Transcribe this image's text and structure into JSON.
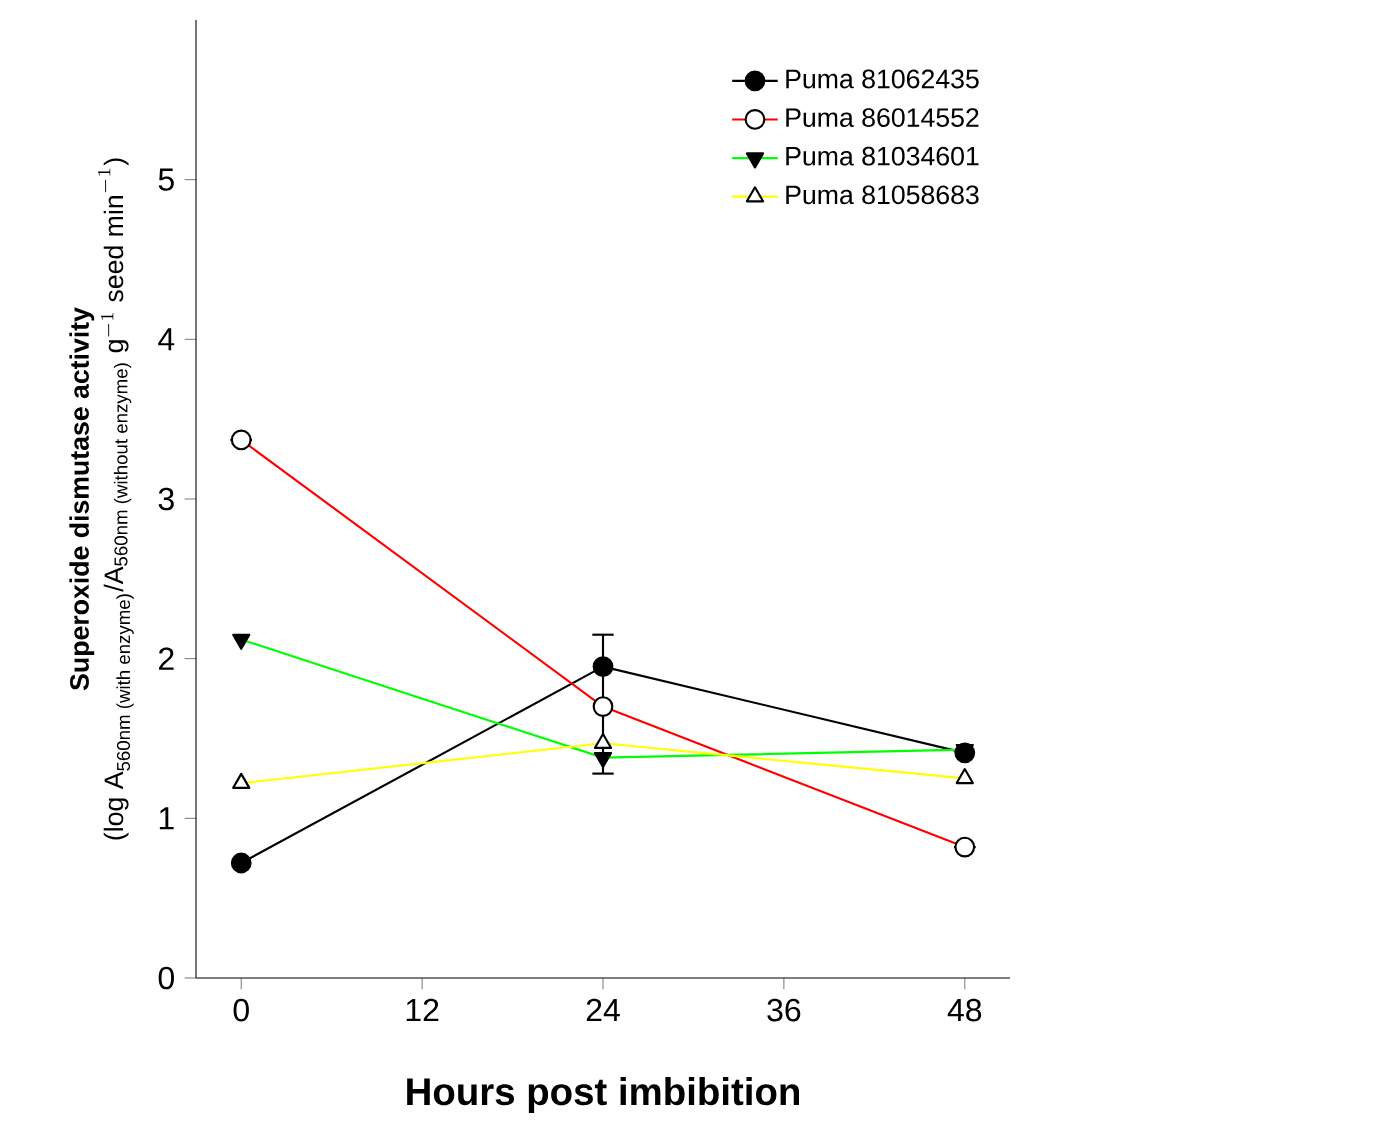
{
  "chart_data": {
    "type": "line",
    "xlabel": "Hours post imbibition",
    "ylabel": "\\begin{array}{c}\\textbf{Superoxide dismutase activity}\\\\ \\text{(log A}_{\\text{560nm (with enzyme)}}\\text{/A}_{\\text{560nm (without enzyme)}}\\text{ g}^{-1}\\text{ seed min}^{-1}\\text{)}\\end{array}",
    "x": [
      0,
      24,
      48
    ],
    "xlim": [
      -3,
      51
    ],
    "xticks": [
      0,
      12,
      24,
      36,
      48
    ],
    "ylim": [
      0,
      6
    ],
    "yticks": [
      0,
      1,
      2,
      3,
      4,
      5
    ],
    "legend": "top right",
    "grid": false,
    "series": [
      {
        "name": "Puma 81062435",
        "color": "#000000",
        "marker": "circle",
        "values": [
          0.72,
          1.95,
          1.41
        ]
      },
      {
        "name": "Puma 86014552",
        "color": "#ff0000",
        "marker": "circle_open",
        "values": [
          3.37,
          1.7,
          0.82
        ],
        "errors": [
          null,
          [
            1.28,
            2.15
          ],
          null
        ]
      },
      {
        "name": "Puma 81034601",
        "color": "#00ff00",
        "marker": "triangle_down",
        "values": [
          2.12,
          1.38,
          1.43
        ]
      },
      {
        "name": "Puma 81058683",
        "color": "#ffff00",
        "marker": "triangle_open",
        "values": [
          1.22,
          1.47,
          1.25
        ]
      }
    ]
  }
}
